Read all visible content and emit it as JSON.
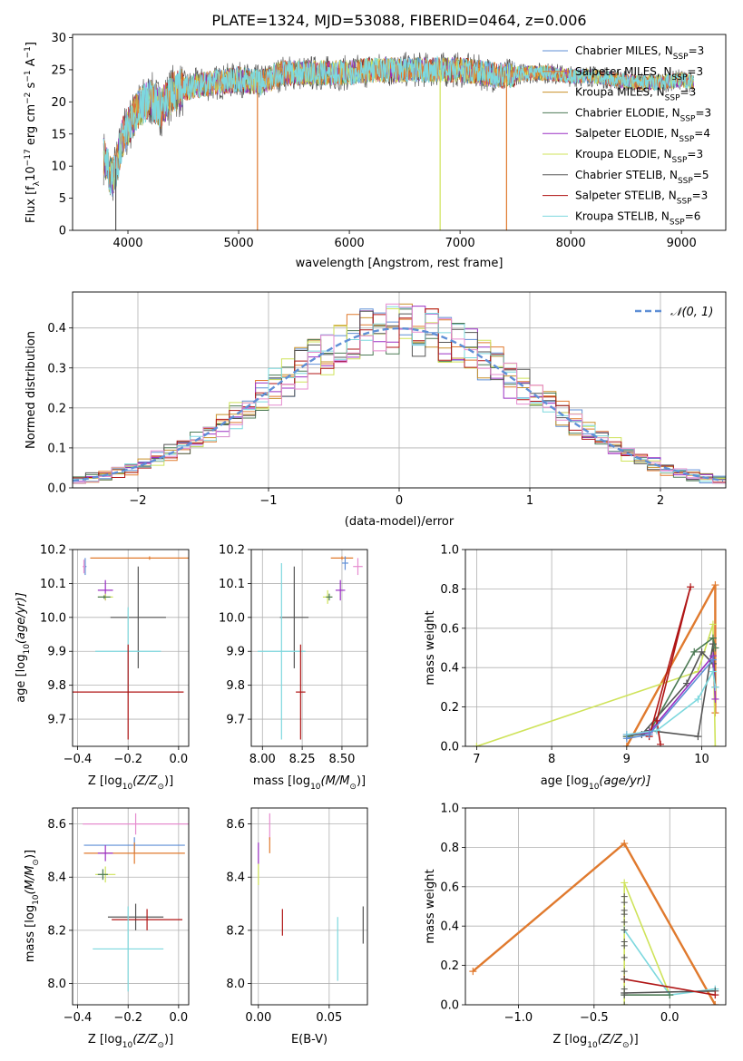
{
  "figure": {
    "title": "PLATE=1324, MJD=53088, FIBERID=0464, z=0.006"
  },
  "palette": {
    "Chabrier MILES": "#5f8fd6",
    "Salpeter MILES": "#e07a2e",
    "Kroupa MILES": "#c8902a",
    "Chabrier ELODIE": "#4c7a55",
    "Salpeter ELODIE": "#9b30c4",
    "Kroupa ELODIE": "#cfe35a",
    "Chabrier STELIB": "#555555",
    "Salpeter STELIB": "#b01515",
    "Kroupa STELIB": "#7dd8de",
    "pink": "#e68ccf"
  },
  "chart_data": [
    {
      "id": "spectrum",
      "type": "line",
      "xlabel": "wavelength [Angstrom, rest frame]",
      "ylabel": "Flux [f_λ 10^-17 erg cm^-2 s^-1 A^-1]",
      "xlim": [
        3500,
        9400
      ],
      "ylim": [
        0,
        30.5
      ],
      "xticks": [
        4000,
        5000,
        6000,
        7000,
        8000,
        9000
      ],
      "yticks": [
        0,
        5,
        10,
        15,
        20,
        25,
        30
      ],
      "grid": false,
      "legend_position": "top-right",
      "legend": [
        {
          "label": "Chabrier MILES, N",
          "sub": "SSP",
          "tail": "=3",
          "color": "#5f8fd6"
        },
        {
          "label": "Salpeter MILES, N",
          "sub": "SSP",
          "tail": "=3",
          "color": "#e07a2e"
        },
        {
          "label": "Kroupa MILES, N",
          "sub": "SSP",
          "tail": "=3",
          "color": "#c8902a"
        },
        {
          "label": "Chabrier ELODIE, N",
          "sub": "SSP",
          "tail": "=3",
          "color": "#4c7a55"
        },
        {
          "label": "Salpeter ELODIE, N",
          "sub": "SSP",
          "tail": "=4",
          "color": "#9b30c4"
        },
        {
          "label": "Kroupa ELODIE, N",
          "sub": "SSP",
          "tail": "=3",
          "color": "#cfe35a"
        },
        {
          "label": "Chabrier STELIB, N",
          "sub": "SSP",
          "tail": "=5",
          "color": "#555555"
        },
        {
          "label": "Salpeter STELIB, N",
          "sub": "SSP",
          "tail": "=3",
          "color": "#b01515"
        },
        {
          "label": "Kroupa STELIB, N",
          "sub": "SSP",
          "tail": "=6",
          "color": "#7dd8de"
        }
      ],
      "continuum": [
        [
          3780,
          11.5
        ],
        [
          3850,
          8
        ],
        [
          3900,
          10
        ],
        [
          3950,
          14.5
        ],
        [
          4000,
          16
        ],
        [
          4100,
          19
        ],
        [
          4200,
          20.5
        ],
        [
          4300,
          19
        ],
        [
          4400,
          21.5
        ],
        [
          4600,
          22.5
        ],
        [
          4800,
          23
        ],
        [
          5000,
          23.5
        ],
        [
          5200,
          23
        ],
        [
          5400,
          24.5
        ],
        [
          5600,
          24.5
        ],
        [
          5800,
          24.5
        ],
        [
          6000,
          24.5
        ],
        [
          6200,
          25
        ],
        [
          6400,
          25
        ],
        [
          6600,
          25
        ],
        [
          6800,
          25
        ],
        [
          7000,
          25
        ],
        [
          7200,
          24.5
        ],
        [
          7400,
          24
        ],
        [
          7600,
          24.5
        ],
        [
          7800,
          24.5
        ],
        [
          8000,
          24
        ],
        [
          8200,
          24
        ],
        [
          8400,
          23.5
        ],
        [
          8600,
          23
        ],
        [
          8800,
          23
        ],
        [
          9000,
          23.5
        ],
        [
          9100,
          23
        ]
      ],
      "dropouts": [
        {
          "x": 5170,
          "y": 0,
          "color": "#e07a2e"
        },
        {
          "x": 6820,
          "y": 0,
          "color": "#cfe35a"
        },
        {
          "x": 7420,
          "y": 0,
          "color": "#e07a2e"
        },
        {
          "x": 3890,
          "y": 0,
          "color": "#555555"
        }
      ]
    },
    {
      "id": "residuals",
      "type": "histogram",
      "xlabel": "(data-model)/error",
      "ylabel": "Normed distribution",
      "xlim": [
        -2.5,
        2.5
      ],
      "ylim": [
        0,
        0.49
      ],
      "xticks": [
        -2,
        -1,
        0,
        1,
        2
      ],
      "yticks": [
        0.0,
        0.1,
        0.2,
        0.3,
        0.4
      ],
      "grid": true,
      "bin_width": 0.1,
      "legend_position": "top-right",
      "legend": [
        {
          "label": "N(0,1)",
          "color": "#5f8fd6",
          "style": "dashed"
        }
      ],
      "reference_curve": {
        "name": "N(0,1)",
        "mean": 0,
        "sigma": 1
      }
    },
    {
      "id": "age_vs_Z",
      "type": "errorbar",
      "xlabel": "Z [log10(Z/Z⊙)]",
      "ylabel": "age [log10(age/yr)]",
      "xlim": [
        -0.42,
        0.04
      ],
      "ylim": [
        9.62,
        10.2
      ],
      "xticks": [
        -0.4,
        -0.2,
        0.0
      ],
      "yticks": [
        9.7,
        9.8,
        9.9,
        10.0,
        10.1,
        10.2
      ],
      "grid": true,
      "points": [
        {
          "x": -0.115,
          "y": 10.175,
          "xerr": 0.235,
          "yerr": 0.005,
          "color": "#e07a2e"
        },
        {
          "x": -0.37,
          "y": 10.15,
          "xerr": 0.005,
          "yerr": 0.025,
          "color": "#5f8fd6"
        },
        {
          "x": -0.375,
          "y": 10.15,
          "xerr": 0.005,
          "yerr": 0.02,
          "color": "#e68ccf"
        },
        {
          "x": -0.29,
          "y": 10.08,
          "xerr": 0.03,
          "yerr": 0.03,
          "color": "#9b30c4"
        },
        {
          "x": -0.29,
          "y": 10.06,
          "xerr": 0.03,
          "yerr": 0.01,
          "color": "#cfe35a"
        },
        {
          "x": -0.295,
          "y": 10.06,
          "xerr": 0.025,
          "yerr": 0.005,
          "color": "#4c7a55"
        },
        {
          "x": -0.16,
          "y": 10.0,
          "xerr": 0.11,
          "yerr": 0.15,
          "color": "#555555"
        },
        {
          "x": -0.2,
          "y": 9.9,
          "xerr": 0.13,
          "yerr": 0.13,
          "color": "#7dd8de"
        },
        {
          "x": -0.2,
          "y": 9.78,
          "xerr": 0.22,
          "yerr": 0.14,
          "color": "#b01515"
        }
      ]
    },
    {
      "id": "age_vs_mass",
      "type": "errorbar",
      "xlabel": "mass [log10(M/M⊙)]",
      "ylabel": "",
      "xlim": [
        7.93,
        8.66
      ],
      "ylim": [
        9.62,
        10.2
      ],
      "xticks": [
        8.0,
        8.25,
        8.5
      ],
      "yticks": [
        9.7,
        9.8,
        9.9,
        10.0,
        10.1,
        10.2
      ],
      "grid": true,
      "points": [
        {
          "x": 8.5,
          "y": 10.175,
          "xerr": 0.07,
          "yerr": 0.005,
          "color": "#e07a2e"
        },
        {
          "x": 8.6,
          "y": 10.15,
          "xerr": 0.03,
          "yerr": 0.025,
          "color": "#e68ccf"
        },
        {
          "x": 8.52,
          "y": 10.16,
          "xerr": 0.02,
          "yerr": 0.02,
          "color": "#5f8fd6"
        },
        {
          "x": 8.49,
          "y": 10.08,
          "xerr": 0.03,
          "yerr": 0.03,
          "color": "#9b30c4"
        },
        {
          "x": 8.41,
          "y": 10.06,
          "xerr": 0.03,
          "yerr": 0.02,
          "color": "#cfe35a"
        },
        {
          "x": 8.42,
          "y": 10.06,
          "xerr": 0.02,
          "yerr": 0.01,
          "color": "#4c7a55"
        },
        {
          "x": 8.2,
          "y": 10.0,
          "xerr": 0.09,
          "yerr": 0.15,
          "color": "#555555"
        },
        {
          "x": 8.12,
          "y": 9.9,
          "xerr": 0.15,
          "yerr": 0.26,
          "color": "#7dd8de"
        },
        {
          "x": 8.24,
          "y": 9.78,
          "xerr": 0.03,
          "yerr": 0.14,
          "color": "#b01515"
        }
      ]
    },
    {
      "id": "weight_vs_age",
      "type": "line",
      "xlabel": "age [log10(age/yr)]",
      "ylabel": "mass weight",
      "xlim": [
        6.85,
        10.32
      ],
      "ylim": [
        0,
        1.0
      ],
      "xticks": [
        7,
        8,
        9,
        10
      ],
      "yticks": [
        0.0,
        0.2,
        0.4,
        0.6,
        0.8,
        1.0
      ],
      "grid": true,
      "series": [
        {
          "color": "#e07a2e",
          "x": [
            9.0,
            10.18,
            10.18
          ],
          "y": [
            0.0,
            0.82,
            0.17
          ]
        },
        {
          "color": "#cfe35a",
          "x": [
            7.0,
            9.95,
            10.15,
            10.18
          ],
          "y": [
            0.0,
            0.38,
            0.62,
            0.0
          ]
        },
        {
          "color": "#555555",
          "x": [
            9.0,
            9.3,
            9.95,
            10.15,
            10.18,
            10.15,
            10.0,
            9.8,
            9.2
          ],
          "y": [
            0.05,
            0.08,
            0.05,
            0.52,
            0.3,
            0.42,
            0.48,
            0.32,
            0.06
          ]
        },
        {
          "color": "#4c7a55",
          "x": [
            9.0,
            9.3,
            9.9,
            10.15,
            10.18
          ],
          "y": [
            0.05,
            0.07,
            0.48,
            0.55,
            0.5
          ]
        },
        {
          "color": "#9b30c4",
          "x": [
            9.0,
            9.3,
            10.15,
            10.18
          ],
          "y": [
            0.06,
            0.07,
            0.46,
            0.24
          ]
        },
        {
          "color": "#b01515",
          "x": [
            9.3,
            9.85,
            9.4,
            9.45
          ],
          "y": [
            0.05,
            0.81,
            0.13,
            0.01
          ]
        },
        {
          "color": "#7dd8de",
          "x": [
            9.0,
            9.4,
            9.95,
            10.15,
            10.18
          ],
          "y": [
            0.06,
            0.08,
            0.24,
            0.38,
            0.3
          ]
        },
        {
          "color": "#5f8fd6",
          "x": [
            9.0,
            9.3,
            10.15
          ],
          "y": [
            0.04,
            0.06,
            0.44
          ]
        }
      ]
    },
    {
      "id": "mass_vs_Z",
      "type": "errorbar",
      "xlabel": "Z [log10(Z/Z⊙)]",
      "ylabel": "mass [log10(M/M⊙)]",
      "xlim": [
        -0.42,
        0.04
      ],
      "ylim": [
        7.92,
        8.66
      ],
      "xticks": [
        -0.4,
        -0.2,
        0.0
      ],
      "yticks": [
        8.0,
        8.2,
        8.4,
        8.6
      ],
      "grid": true,
      "points": [
        {
          "x": -0.17,
          "y": 8.6,
          "xerr": 0.21,
          "yerr": 0.04,
          "color": "#e68ccf"
        },
        {
          "x": -0.175,
          "y": 8.52,
          "xerr": 0.2,
          "yerr": 0.03,
          "color": "#5f8fd6"
        },
        {
          "x": -0.175,
          "y": 8.49,
          "xerr": 0.2,
          "yerr": 0.04,
          "color": "#e07a2e"
        },
        {
          "x": -0.29,
          "y": 8.49,
          "xerr": 0.03,
          "yerr": 0.03,
          "color": "#9b30c4"
        },
        {
          "x": -0.29,
          "y": 8.41,
          "xerr": 0.04,
          "yerr": 0.03,
          "color": "#cfe35a"
        },
        {
          "x": -0.3,
          "y": 8.41,
          "xerr": 0.02,
          "yerr": 0.02,
          "color": "#4c7a55"
        },
        {
          "x": -0.17,
          "y": 8.25,
          "xerr": 0.11,
          "yerr": 0.05,
          "color": "#555555"
        },
        {
          "x": -0.125,
          "y": 8.24,
          "xerr": 0.14,
          "yerr": 0.04,
          "color": "#b01515"
        },
        {
          "x": -0.2,
          "y": 8.13,
          "xerr": 0.14,
          "yerr": 0.16,
          "color": "#7dd8de"
        }
      ]
    },
    {
      "id": "mass_vs_EBV",
      "type": "errorbar",
      "xlabel": "E(B-V)",
      "ylabel": "",
      "xlim": [
        -0.005,
        0.077
      ],
      "ylim": [
        7.92,
        8.66
      ],
      "xticks": [
        0.0,
        0.05
      ],
      "yticks": [
        8.0,
        8.2,
        8.4,
        8.6
      ],
      "grid": true,
      "points": [
        {
          "x": 0.008,
          "y": 8.59,
          "xerr": 0.0,
          "yerr": 0.05,
          "color": "#e68ccf"
        },
        {
          "x": 0.008,
          "y": 8.52,
          "xerr": 0.0,
          "yerr": 0.03,
          "color": "#e07a2e"
        },
        {
          "x": 0.0,
          "y": 8.49,
          "xerr": 0.0,
          "yerr": 0.04,
          "color": "#9b30c4"
        },
        {
          "x": 0.0,
          "y": 8.41,
          "xerr": 0.0,
          "yerr": 0.04,
          "color": "#cfe35a"
        },
        {
          "x": 0.017,
          "y": 8.23,
          "xerr": 0.0,
          "yerr": 0.05,
          "color": "#b01515"
        },
        {
          "x": 0.074,
          "y": 8.22,
          "xerr": 0.0,
          "yerr": 0.07,
          "color": "#555555"
        },
        {
          "x": 0.056,
          "y": 8.13,
          "xerr": 0.0,
          "yerr": 0.12,
          "color": "#7dd8de"
        }
      ]
    },
    {
      "id": "weight_vs_Z",
      "type": "line",
      "xlabel": "Z [log10(Z/Z⊙)]",
      "ylabel": "mass weight",
      "xlim": [
        -1.35,
        0.37
      ],
      "ylim": [
        0,
        1.0
      ],
      "xticks": [
        -1.0,
        -0.5,
        0.0
      ],
      "yticks": [
        0.0,
        0.2,
        0.4,
        0.6,
        0.8,
        1.0
      ],
      "grid": true,
      "series": [
        {
          "color": "#e07a2e",
          "x": [
            -1.3,
            -0.3,
            0.3
          ],
          "y": [
            0.17,
            0.82,
            0.0
          ]
        },
        {
          "color": "#cfe35a",
          "x": [
            -0.3,
            -0.3,
            0.0
          ],
          "y": [
            0.0,
            0.62,
            0.05
          ]
        },
        {
          "color": "#7dd8de",
          "x": [
            -0.3,
            0.0,
            0.3
          ],
          "y": [
            0.38,
            0.05,
            0.08
          ]
        },
        {
          "color": "#555555",
          "x": [
            -0.3,
            0.3
          ],
          "y": [
            0.06,
            0.07
          ]
        },
        {
          "color": "#b01515",
          "x": [
            -0.3,
            0.3
          ],
          "y": [
            0.13,
            0.05
          ]
        },
        {
          "color": "#4c7a55",
          "x": [
            -0.3,
            0.0
          ],
          "y": [
            0.05,
            0.05
          ]
        }
      ],
      "markers_at": [
        -0.3
      ],
      "marker_values": [
        0.0,
        0.05,
        0.08,
        0.13,
        0.17,
        0.24,
        0.3,
        0.32,
        0.38,
        0.42,
        0.46,
        0.48,
        0.52,
        0.55
      ]
    }
  ],
  "mathtext": {
    "Z_label_main": "Z [log",
    "Z_label_sub": "10",
    "Z_label_paren": "(Z/Z",
    "Z_label_sun": "⊙",
    "Z_label_close": ")]",
    "age_label_main": "age  [log",
    "age_label_tail": "(age/yr)]",
    "mass_label_main": "mass [log",
    "mass_label_paren": "(M/M",
    "flux_main": "Flux [f",
    "flux_lambda": "λ",
    "flux_mid": "10",
    "flux_exp": "−17",
    "flux_unit": " erg cm",
    "flux_exp2": "−2",
    "flux_s": " s",
    "flux_exp3": "−1",
    "flux_A": " A",
    "flux_exp4": "−1",
    "flux_close": "]",
    "normal_label": "𝒩(0, 1)"
  }
}
